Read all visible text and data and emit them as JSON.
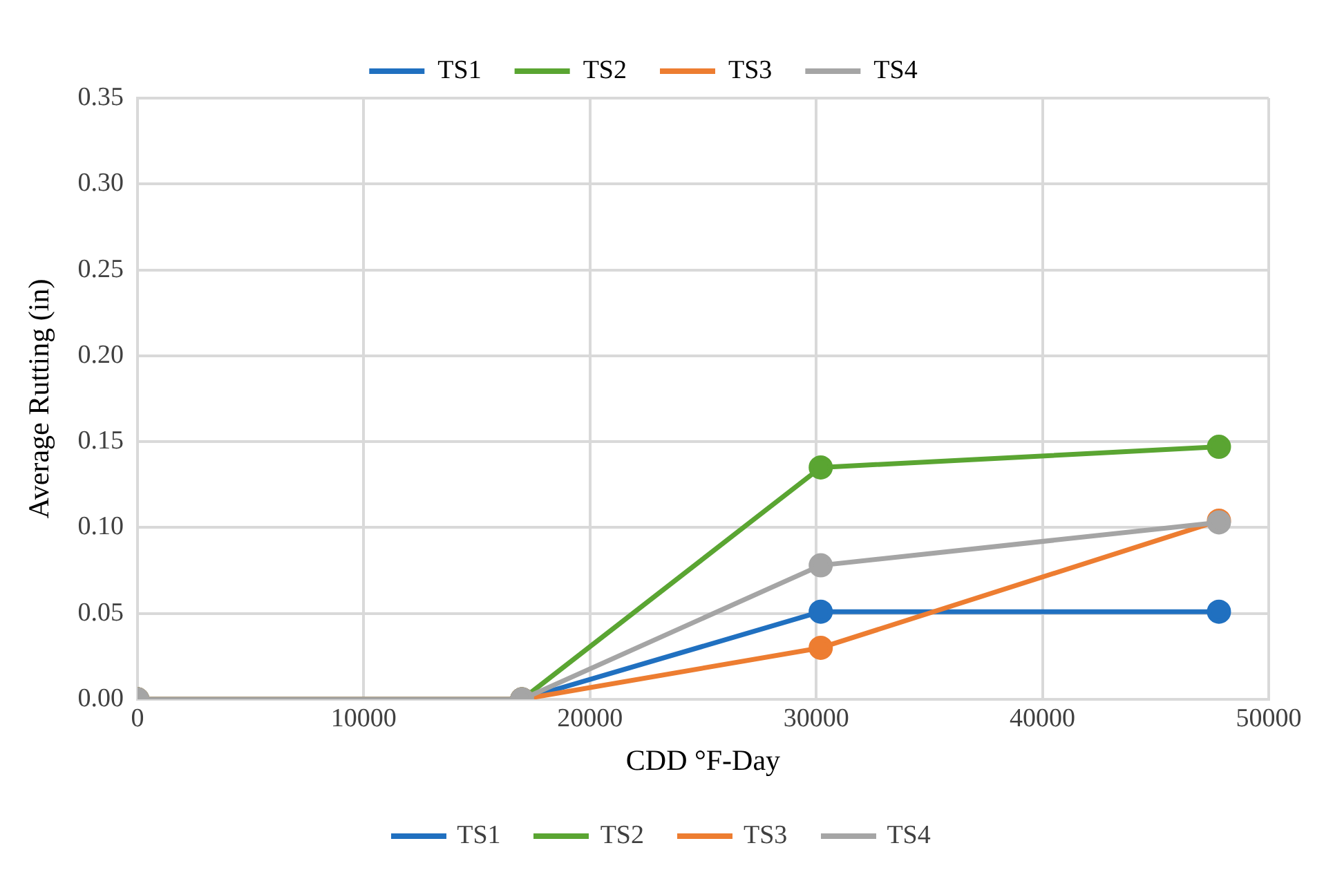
{
  "chart_data": {
    "type": "line",
    "xlabel": "CDD °F-Day",
    "ylabel": "Average Rutting (in)",
    "x": [
      0,
      17000,
      30200,
      47800
    ],
    "series": [
      {
        "name": "TS1",
        "color": "#2070c0",
        "values": [
          0,
          0,
          0.051,
          0.051
        ]
      },
      {
        "name": "TS2",
        "color": "#5aa532",
        "values": [
          0,
          0,
          0.135,
          0.147
        ]
      },
      {
        "name": "TS3",
        "color": "#ed7d31",
        "values": [
          0,
          0,
          0.03,
          0.104
        ]
      },
      {
        "name": "TS4",
        "color": "#a5a5a5",
        "values": [
          0,
          0,
          0.078,
          0.103
        ]
      }
    ],
    "xlim": [
      0,
      50000
    ],
    "xticks": [
      0,
      10000,
      20000,
      30000,
      40000,
      50000
    ],
    "ylim": [
      0,
      0.35
    ],
    "yticks": [
      {
        "value": 0,
        "label": "0.00"
      },
      {
        "value": 0.05,
        "label": "0.05"
      },
      {
        "value": 0.1,
        "label": "0.10"
      },
      {
        "value": 0.15,
        "label": "0.15"
      },
      {
        "value": 0.2,
        "label": "0.20"
      },
      {
        "value": 0.25,
        "label": "0.25"
      },
      {
        "value": 0.3,
        "label": "0.30"
      },
      {
        "value": 0.35,
        "label": "0.35"
      }
    ],
    "grid": true,
    "legend": [
      "top",
      "bottom"
    ],
    "marker": "circle",
    "line_style": "solid"
  }
}
